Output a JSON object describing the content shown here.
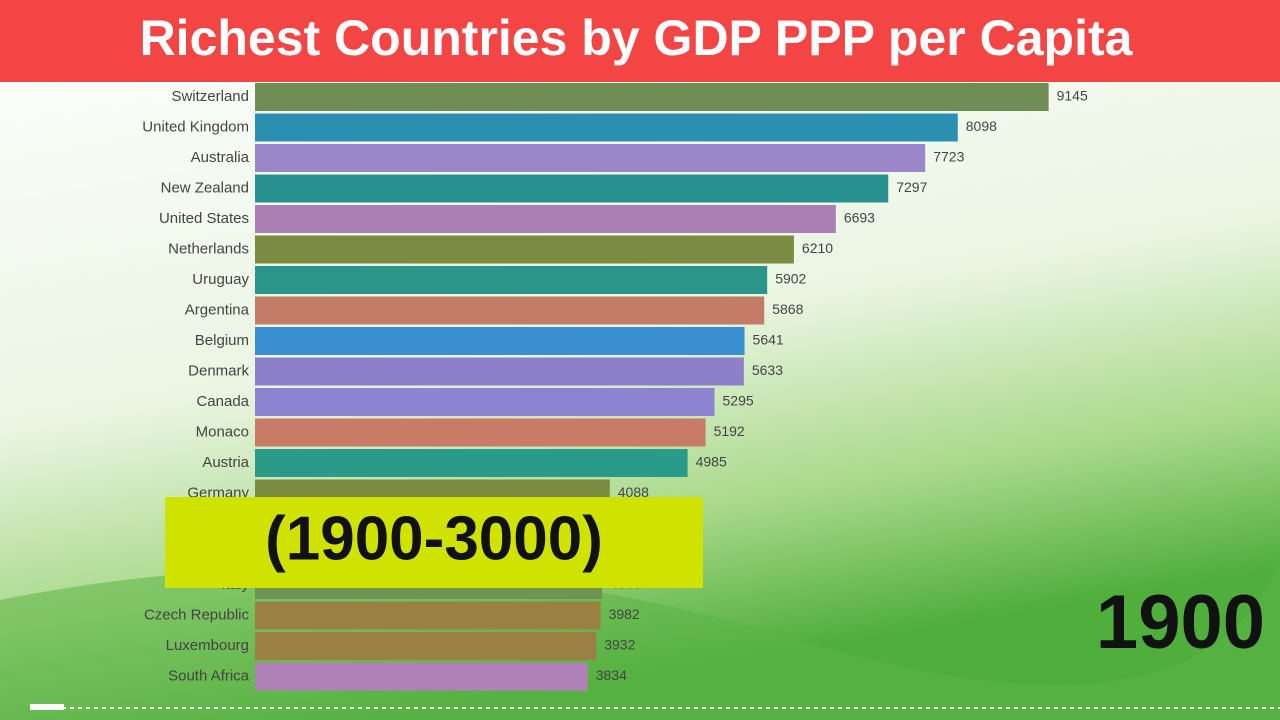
{
  "chart_data": {
    "type": "bar",
    "orientation": "horizontal",
    "title": "Richest Countries by GDP  PPP per Capita",
    "subtitle": "(1900-3000)",
    "annotation": "1900",
    "categories": [
      "Switzerland",
      "United Kingdom",
      "Australia",
      "New Zealand",
      "United States",
      "Netherlands",
      "Uruguay",
      "Argentina",
      "Belgium",
      "Denmark",
      "Canada",
      "Monaco",
      "Austria",
      "Germany",
      "Italy",
      "Czech Republic",
      "Luxembourg",
      "South Africa"
    ],
    "values": [
      9145,
      8098,
      7723,
      7297,
      6693,
      6210,
      5902,
      5868,
      5641,
      5633,
      5295,
      5192,
      4985,
      4088,
      4000,
      3982,
      3932,
      3834
    ],
    "colors": [
      "#6f8d55",
      "#2b8fb2",
      "#9a86c9",
      "#2a9191",
      "#a97fb6",
      "#7b8b42",
      "#2a9589",
      "#c27c68",
      "#3a8fd0",
      "#8c80cb",
      "#8d83d0",
      "#c97b68",
      "#2a9b89",
      "#7b8b42",
      "#6f9352",
      "#9a8143",
      "#9a8143",
      "#b081b9"
    ],
    "xlim": [
      0,
      9230
    ]
  }
}
